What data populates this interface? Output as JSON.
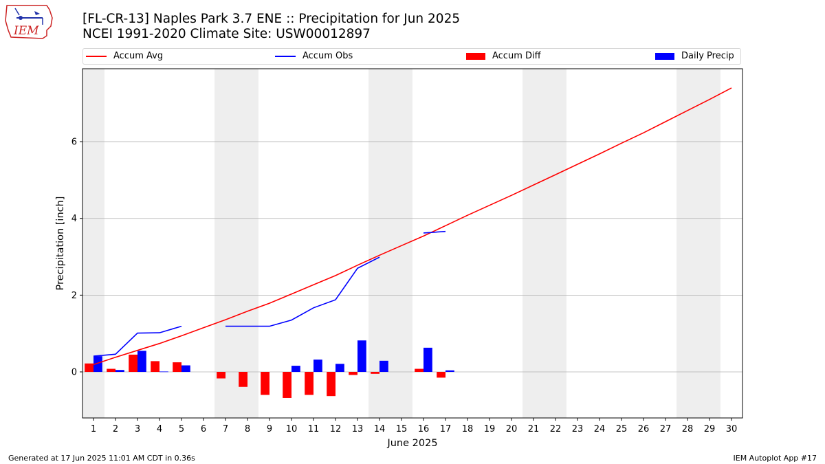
{
  "logo": {
    "text": "IEM"
  },
  "title": {
    "line1": "[FL-CR-13] Naples Park 3.7 ENE :: Precipitation for Jun 2025",
    "line2": "NCEI 1991-2020 Climate Site: USW00012897"
  },
  "footer": {
    "left": "Generated at 17 Jun 2025 11:01 AM CDT in 0.36s",
    "right": "IEM Autoplot App #17"
  },
  "colors": {
    "avg": "#ff0000",
    "obs": "#0000ff",
    "diff": "#ff0000",
    "daily": "#0000ff",
    "weekend": "#eeeeee",
    "grid": "#b0b0b0"
  },
  "chart_data": {
    "type": "bar",
    "xlabel": "June 2025",
    "ylabel": "Precipitation [inch]",
    "xlim": [
      0.5,
      30.5
    ],
    "ylim": [
      -1.2,
      7.9
    ],
    "yticks": [
      0,
      2,
      4,
      6
    ],
    "grid": "horizontal",
    "legend_position": "top",
    "x": [
      1,
      2,
      3,
      4,
      5,
      6,
      7,
      8,
      9,
      10,
      11,
      12,
      13,
      14,
      15,
      16,
      17,
      18,
      19,
      20,
      21,
      22,
      23,
      24,
      25,
      26,
      27,
      28,
      29,
      30
    ],
    "weekend_bands": [
      [
        0.5,
        1.5
      ],
      [
        6.5,
        8.5
      ],
      [
        13.5,
        15.5
      ],
      [
        20.5,
        22.5
      ],
      [
        27.5,
        29.5
      ]
    ],
    "series": [
      {
        "name": "Accum Avg",
        "kind": "line",
        "values": [
          0.19,
          0.38,
          0.56,
          0.74,
          0.94,
          1.15,
          1.36,
          1.58,
          1.79,
          2.03,
          2.27,
          2.51,
          2.78,
          3.04,
          3.29,
          3.54,
          3.81,
          4.08,
          4.34,
          4.6,
          4.87,
          5.14,
          5.41,
          5.68,
          5.96,
          6.23,
          6.52,
          6.81,
          7.1,
          7.4
        ]
      },
      {
        "name": "Accum Obs",
        "kind": "line",
        "values": [
          0.41,
          0.46,
          1.01,
          1.02,
          1.19,
          null,
          1.19,
          1.19,
          1.19,
          1.35,
          1.67,
          1.88,
          2.7,
          2.99,
          null,
          3.62,
          3.66,
          null,
          null,
          null,
          null,
          null,
          null,
          null,
          null,
          null,
          null,
          null,
          null,
          null
        ]
      },
      {
        "name": "Accum Diff",
        "kind": "bar",
        "values": [
          0.22,
          0.08,
          0.45,
          0.28,
          0.25,
          null,
          -0.17,
          -0.39,
          -0.6,
          -0.68,
          -0.6,
          -0.63,
          -0.08,
          -0.05,
          null,
          0.08,
          -0.15,
          null,
          null,
          null,
          null,
          null,
          null,
          null,
          null,
          null,
          null,
          null,
          null,
          null
        ]
      },
      {
        "name": "Daily Precip",
        "kind": "bar",
        "values": [
          0.41,
          0.05,
          0.55,
          0.01,
          0.17,
          0,
          0,
          0,
          0,
          0.16,
          0.32,
          0.21,
          0.82,
          0.29,
          0,
          0.63,
          0.04,
          null,
          null,
          null,
          null,
          null,
          null,
          null,
          null,
          null,
          null,
          null,
          null,
          null
        ]
      }
    ]
  }
}
